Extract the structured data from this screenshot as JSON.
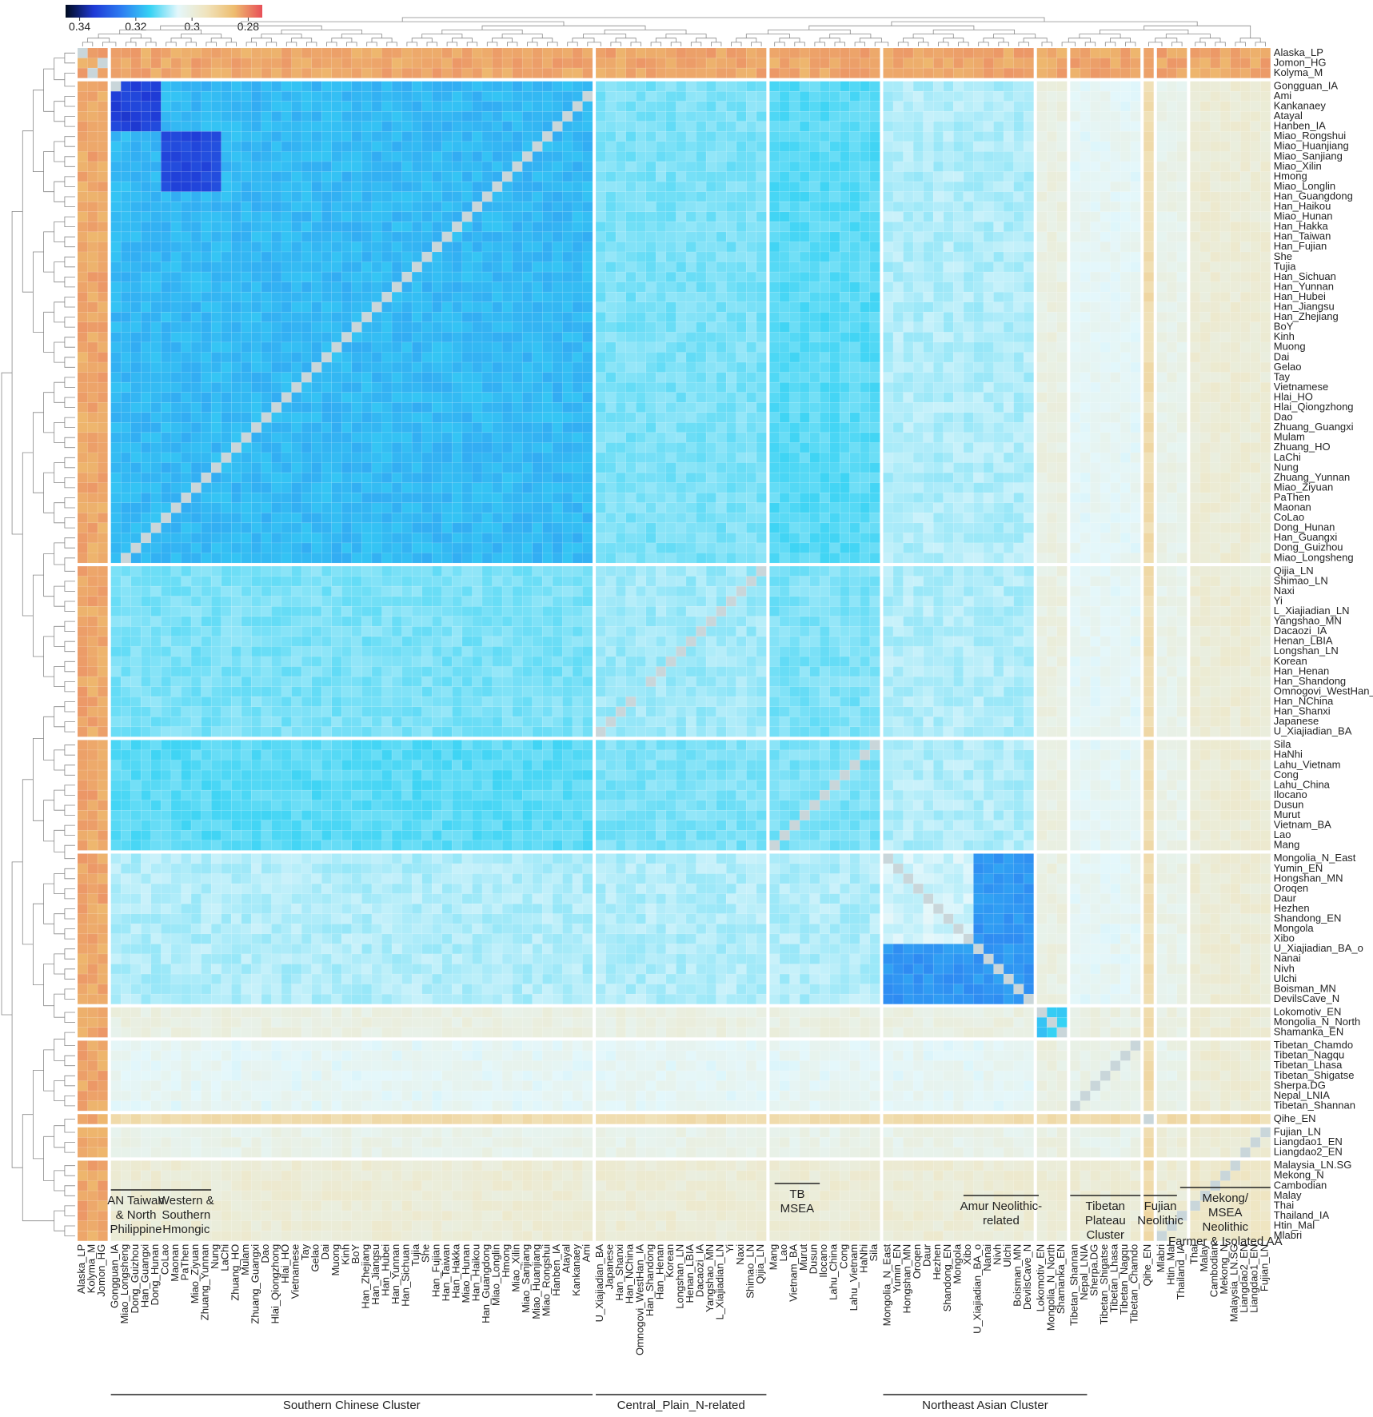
{
  "chart_data": {
    "type": "heatmap",
    "legend": {
      "ticks": [
        "0.34",
        "0.32",
        "0.3",
        "0.28"
      ],
      "tick_values": [
        0.34,
        0.32,
        0.3,
        0.28
      ],
      "range": [
        0.275,
        0.345
      ],
      "colors": [
        "#000a1e",
        "#1f3ad6",
        "#2d7ef2",
        "#36d2f4",
        "#e4f7fb",
        "#f0e4be",
        "#eebd6f",
        "#e84f58"
      ],
      "placement": "top-left"
    },
    "row_labels": [
      "Alaska_LP",
      "Jomon_HG",
      "Kolyma_M",
      "Gongguan_IA",
      "Ami",
      "Kankanaey",
      "Atayal",
      "Hanben_IA",
      "Miao_Rongshui",
      "Miao_Huanjiang",
      "Miao_Sanjiang",
      "Miao_Xilin",
      "Hmong",
      "Miao_Longlin",
      "Han_Guangdong",
      "Han_Haikou",
      "Miao_Hunan",
      "Han_Hakka",
      "Han_Taiwan",
      "Han_Fujian",
      "She",
      "Tujia",
      "Han_Sichuan",
      "Han_Yunnan",
      "Han_Hubei",
      "Han_Jiangsu",
      "Han_Zhejiang",
      "BoY",
      "Kinh",
      "Muong",
      "Dai",
      "Gelao",
      "Tay",
      "Vietnamese",
      "Hlai_HO",
      "Hlai_Qiongzhong",
      "Dao",
      "Zhuang_Guangxi",
      "Mulam",
      "Zhuang_HO",
      "LaChi",
      "Nung",
      "Zhuang_Yunnan",
      "Miao_Ziyuan",
      "PaThen",
      "Maonan",
      "CoLao",
      "Dong_Hunan",
      "Han_Guangxi",
      "Dong_Guizhou",
      "Miao_Longsheng",
      "Qijia_LN",
      "Shimao_LN",
      "Naxi",
      "Yi",
      "L_Xiajiadian_LN",
      "Yangshao_MN",
      "Dacaozi_IA",
      "Henan_LBIA",
      "Longshan_LN",
      "Korean",
      "Han_Henan",
      "Han_Shandong",
      "Omnogovi_WestHan_I",
      "Han_NChina",
      "Han_Shanxi",
      "Japanese",
      "U_Xiajiadian_BA",
      "Sila",
      "HaNhi",
      "Lahu_Vietnam",
      "Cong",
      "Lahu_China",
      "Ilocano",
      "Dusun",
      "Murut",
      "Vietnam_BA",
      "Lao",
      "Mang",
      "Mongolia_N_East",
      "Yumin_EN",
      "Hongshan_MN",
      "Oroqen",
      "Daur",
      "Hezhen",
      "Shandong_EN",
      "Mongola",
      "Xibo",
      "U_Xiajiadian_BA_o",
      "Nanai",
      "Nivh",
      "Ulchi",
      "Boisman_MN",
      "DevilsCave_N",
      "Lokomotiv_EN",
      "Mongolia_N_North",
      "Shamanka_EN",
      "Tibetan_Chamdo",
      "Tibetan_Nagqu",
      "Tibetan_Lhasa",
      "Tibetan_Shigatse",
      "Sherpa.DG",
      "Nepal_LNIA",
      "Tibetan_Shannan",
      "Qihe_EN",
      "Fujian_LN",
      "Liangdao1_EN",
      "Liangdao2_EN",
      "Malaysia_LN.SG",
      "Mekong_N",
      "Cambodian",
      "Malay",
      "Thai",
      "Thailand_IA",
      "Htin_Mal",
      "Mlabri"
    ],
    "col_labels": [
      "Alaska_LP",
      "Kolyma_M",
      "Jomon_HG",
      "Gongguan_IA",
      "Miao_Longsheng",
      "Dong_Guizhou",
      "Han_Guangxi",
      "Dong_Hunan",
      "CoLao",
      "Maonan",
      "PaThen",
      "Miao_Ziyuan",
      "Zhuang_Yunnan",
      "Nung",
      "LaChi",
      "Zhuang_HO",
      "Mulam",
      "Zhuang_Guangxi",
      "Dao",
      "Hlai_Qiongzhong",
      "Hlai_HO",
      "Vietnamese",
      "Tay",
      "Gelao",
      "Dai",
      "Muong",
      "Kinh",
      "BoY",
      "Han_Zhejiang",
      "Han_Jiangsu",
      "Han_Hubei",
      "Han_Yunnan",
      "Han_Sichuan",
      "Tujia",
      "She",
      "Han_Fujian",
      "Han_Taiwan",
      "Han_Hakka",
      "Miao_Hunan",
      "Han_Haikou",
      "Han_Guangdong",
      "Miao_Longlin",
      "Hmong",
      "Miao_Xilin",
      "Miao_Sanjiang",
      "Miao_Huanjiang",
      "Miao_Rongshui",
      "Hanben_IA",
      "Atayal",
      "Kankanaey",
      "Ami",
      "U_Xiajiadian_BA",
      "Japanese",
      "Han_Shanxi",
      "Han_NChina",
      "Omnogovi_WestHan_IA",
      "Han_Shandong",
      "Han_Henan",
      "Korean",
      "Longshan_LN",
      "Henan_LBIA",
      "Dacaozi_IA",
      "Yangshao_MN",
      "L_Xiajiadian_LN",
      "Yi",
      "Naxi",
      "Shimao_LN",
      "Qijia_LN",
      "Mang",
      "Lao",
      "Vietnam_BA",
      "Murut",
      "Dusun",
      "Ilocano",
      "Lahu_China",
      "Cong",
      "Lahu_Vietnam",
      "HaNhi",
      "Sila",
      "Mongolia_N_East",
      "Yumin_EN",
      "Hongshan_MN",
      "Oroqen",
      "Daur",
      "Hezhen",
      "Shandong_EN",
      "Mongola",
      "Xibo",
      "U_Xiajiadian_BA_o",
      "Nanai",
      "Nivh",
      "Ulchi",
      "Boisman_MN",
      "DevilsCave_N",
      "Lokomotiv_EN",
      "Mongolia_N_North",
      "Shamanka_EN",
      "Tibetan_Shannan",
      "Nepal_LNIA",
      "Sherpa.DG",
      "Tibetan_Shigatse",
      "Tibetan_Lhasa",
      "Tibetan_Nagqu",
      "Tibetan_Chamdo",
      "Qihe_EN",
      "Mlabri",
      "Htin_Mal",
      "Thailand_IA",
      "Thai",
      "Malay",
      "Cambodian",
      "Mekong_N",
      "Malaysia_LN.SG",
      "Liangdao2_EN",
      "Liangdao1_EN",
      "Fujian_LN"
    ],
    "row_clusters": [
      3,
      48,
      17,
      11,
      15,
      3,
      7,
      1,
      3,
      8
    ],
    "col_clusters": [
      3,
      48,
      17,
      11,
      15,
      3,
      7,
      1,
      3,
      8
    ],
    "cluster_levels": [
      0.285,
      0.318,
      0.309,
      0.311,
      0.306,
      0.299,
      0.302,
      0.291,
      0.3,
      0.297
    ],
    "column_groups": [
      {
        "label": [
          "AN Taiwan",
          "& North",
          "Philippine"
        ]
      },
      {
        "label": [
          "Western &",
          "Southern",
          "Hmongic"
        ]
      },
      {
        "label": [
          "Southern Chinese Cluster"
        ]
      },
      {
        "label": [
          "Central_Plain_N-related"
        ]
      },
      {
        "label": [
          "TB",
          "MSEA"
        ]
      },
      {
        "label": [
          "Amur Neolithic-",
          "related"
        ]
      },
      {
        "label": [
          "Northeast Asian Cluster"
        ]
      },
      {
        "label": [
          "Tibetan",
          "Plateau",
          "Cluster"
        ]
      },
      {
        "label": [
          "Fujian",
          "Neolithic"
        ]
      },
      {
        "label": [
          "Mekong/",
          "MSEA",
          "Neolithic",
          "Farmer & Isolated AA"
        ]
      }
    ]
  }
}
